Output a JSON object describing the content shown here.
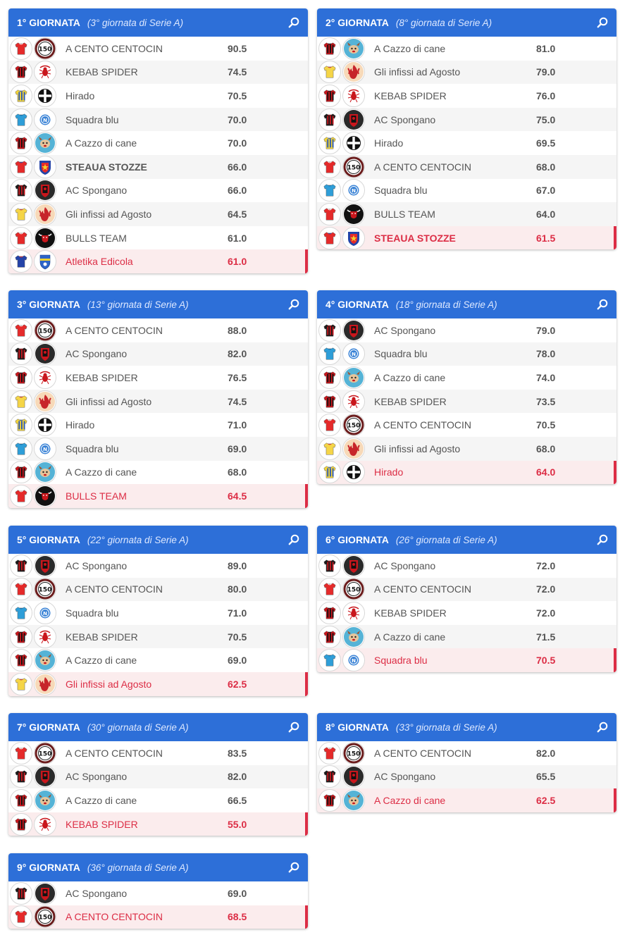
{
  "colors": {
    "header": "#2d6fd8",
    "last_place": "#dc2d45",
    "alt_row": "#f5f5f5"
  },
  "rounds": [
    {
      "title": "1° GIORNATA",
      "subtitle": "(3° giornata di Serie A)",
      "rows": [
        {
          "team": "A CENTO CENTOCIN",
          "score": "90.5",
          "jersey": "red",
          "logo": "150"
        },
        {
          "team": "KEBAB SPIDER",
          "score": "74.5",
          "jersey": "redblack",
          "logo": "spider"
        },
        {
          "team": "Hirado",
          "score": "70.5",
          "jersey": "yellowblue",
          "logo": "cross"
        },
        {
          "team": "Squadra blu",
          "score": "70.0",
          "jersey": "lightblue",
          "logo": "napoli"
        },
        {
          "team": "A Cazzo di cane",
          "score": "70.0",
          "jersey": "redblack",
          "logo": "dog"
        },
        {
          "team": "STEAUA STOZZE",
          "score": "66.0",
          "jersey": "redblue",
          "logo": "steaua",
          "bold": true
        },
        {
          "team": "AC Spongano",
          "score": "66.0",
          "jersey": "blackred",
          "logo": "shield"
        },
        {
          "team": "Gli infissi ad Agosto",
          "score": "64.5",
          "jersey": "yellow",
          "logo": "flame"
        },
        {
          "team": "BULLS TEAM",
          "score": "61.0",
          "jersey": "red",
          "logo": "bull"
        },
        {
          "team": "Atletika Edicola",
          "score": "61.0",
          "jersey": "bluered",
          "logo": "edicola",
          "last": true
        }
      ]
    },
    {
      "title": "2° GIORNATA",
      "subtitle": "(8° giornata di Serie A)",
      "rows": [
        {
          "team": "A Cazzo di cane",
          "score": "81.0",
          "jersey": "redblack",
          "logo": "dog"
        },
        {
          "team": "Gli infissi ad Agosto",
          "score": "79.0",
          "jersey": "yellow",
          "logo": "flame"
        },
        {
          "team": "KEBAB SPIDER",
          "score": "76.0",
          "jersey": "redblack",
          "logo": "spider"
        },
        {
          "team": "AC Spongano",
          "score": "75.0",
          "jersey": "blackred",
          "logo": "shield"
        },
        {
          "team": "Hirado",
          "score": "69.5",
          "jersey": "yellowblue",
          "logo": "cross"
        },
        {
          "team": "A CENTO CENTOCIN",
          "score": "68.0",
          "jersey": "red",
          "logo": "150"
        },
        {
          "team": "Squadra blu",
          "score": "67.0",
          "jersey": "lightblue",
          "logo": "napoli"
        },
        {
          "team": "BULLS TEAM",
          "score": "64.0",
          "jersey": "red",
          "logo": "bull"
        },
        {
          "team": "STEAUA STOZZE",
          "score": "61.5",
          "jersey": "redblue",
          "logo": "steaua",
          "bold": true,
          "last": true
        }
      ]
    },
    {
      "title": "3° GIORNATA",
      "subtitle": "(13° giornata di Serie A)",
      "rows": [
        {
          "team": "A CENTO CENTOCIN",
          "score": "88.0",
          "jersey": "red",
          "logo": "150"
        },
        {
          "team": "AC Spongano",
          "score": "82.0",
          "jersey": "blackred",
          "logo": "shield"
        },
        {
          "team": "KEBAB SPIDER",
          "score": "76.5",
          "jersey": "redblack",
          "logo": "spider"
        },
        {
          "team": "Gli infissi ad Agosto",
          "score": "74.5",
          "jersey": "yellow",
          "logo": "flame"
        },
        {
          "team": "Hirado",
          "score": "71.0",
          "jersey": "yellowblue",
          "logo": "cross"
        },
        {
          "team": "Squadra blu",
          "score": "69.0",
          "jersey": "lightblue",
          "logo": "napoli"
        },
        {
          "team": "A Cazzo di cane",
          "score": "68.0",
          "jersey": "redblack",
          "logo": "dog"
        },
        {
          "team": "BULLS TEAM",
          "score": "64.5",
          "jersey": "red",
          "logo": "bull",
          "last": true
        }
      ]
    },
    {
      "title": "4° GIORNATA",
      "subtitle": "(18° giornata di Serie A)",
      "rows": [
        {
          "team": "AC Spongano",
          "score": "79.0",
          "jersey": "blackred",
          "logo": "shield"
        },
        {
          "team": "Squadra blu",
          "score": "78.0",
          "jersey": "lightblue",
          "logo": "napoli"
        },
        {
          "team": "A Cazzo di cane",
          "score": "74.0",
          "jersey": "redblack",
          "logo": "dog"
        },
        {
          "team": "KEBAB SPIDER",
          "score": "73.5",
          "jersey": "redblack",
          "logo": "spider"
        },
        {
          "team": "A CENTO CENTOCIN",
          "score": "70.5",
          "jersey": "red",
          "logo": "150"
        },
        {
          "team": "Gli infissi ad Agosto",
          "score": "68.0",
          "jersey": "yellow",
          "logo": "flame"
        },
        {
          "team": "Hirado",
          "score": "64.0",
          "jersey": "yellowblue",
          "logo": "cross",
          "last": true
        }
      ]
    },
    {
      "title": "5° GIORNATA",
      "subtitle": "(22° giornata di Serie A)",
      "rows": [
        {
          "team": "AC Spongano",
          "score": "89.0",
          "jersey": "blackred",
          "logo": "shield"
        },
        {
          "team": "A CENTO CENTOCIN",
          "score": "80.0",
          "jersey": "red",
          "logo": "150"
        },
        {
          "team": "Squadra blu",
          "score": "71.0",
          "jersey": "lightblue",
          "logo": "napoli"
        },
        {
          "team": "KEBAB SPIDER",
          "score": "70.5",
          "jersey": "redblack",
          "logo": "spider"
        },
        {
          "team": "A Cazzo di cane",
          "score": "69.0",
          "jersey": "redblack",
          "logo": "dog"
        },
        {
          "team": "Gli infissi ad Agosto",
          "score": "62.5",
          "jersey": "yellow",
          "logo": "flame",
          "last": true
        }
      ]
    },
    {
      "title": "6° GIORNATA",
      "subtitle": "(26° giornata di Serie A)",
      "rows": [
        {
          "team": "AC Spongano",
          "score": "72.0",
          "jersey": "blackred",
          "logo": "shield"
        },
        {
          "team": "A CENTO CENTOCIN",
          "score": "72.0",
          "jersey": "red",
          "logo": "150"
        },
        {
          "team": "KEBAB SPIDER",
          "score": "72.0",
          "jersey": "redblack",
          "logo": "spider"
        },
        {
          "team": "A Cazzo di cane",
          "score": "71.5",
          "jersey": "redblack",
          "logo": "dog"
        },
        {
          "team": "Squadra blu",
          "score": "70.5",
          "jersey": "lightblue",
          "logo": "napoli",
          "last": true
        }
      ]
    },
    {
      "title": "7° GIORNATA",
      "subtitle": "(30° giornata di Serie A)",
      "rows": [
        {
          "team": "A CENTO CENTOCIN",
          "score": "83.5",
          "jersey": "red",
          "logo": "150"
        },
        {
          "team": "AC Spongano",
          "score": "82.0",
          "jersey": "blackred",
          "logo": "shield"
        },
        {
          "team": "A Cazzo di cane",
          "score": "66.5",
          "jersey": "redblack",
          "logo": "dog"
        },
        {
          "team": "KEBAB SPIDER",
          "score": "55.0",
          "jersey": "redblack",
          "logo": "spider",
          "last": true
        }
      ]
    },
    {
      "title": "8° GIORNATA",
      "subtitle": "(33° giornata di Serie A)",
      "rows": [
        {
          "team": "A CENTO CENTOCIN",
          "score": "82.0",
          "jersey": "red",
          "logo": "150"
        },
        {
          "team": "AC Spongano",
          "score": "65.5",
          "jersey": "blackred",
          "logo": "shield"
        },
        {
          "team": "A Cazzo di cane",
          "score": "62.5",
          "jersey": "redblack",
          "logo": "dog",
          "last": true
        }
      ]
    },
    {
      "title": "9° GIORNATA",
      "subtitle": "(36° giornata di Serie A)",
      "rows": [
        {
          "team": "AC Spongano",
          "score": "69.0",
          "jersey": "blackred",
          "logo": "shield"
        },
        {
          "team": "A CENTO CENTOCIN",
          "score": "68.5",
          "jersey": "red",
          "logo": "150",
          "last": true
        }
      ]
    }
  ]
}
